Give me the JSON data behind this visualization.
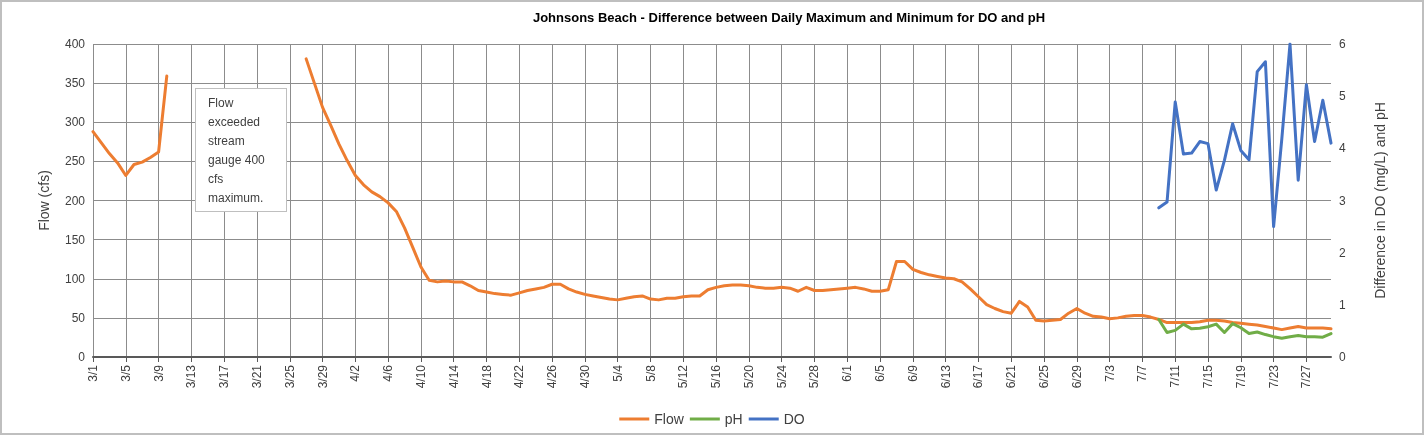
{
  "chart_data": {
    "type": "line",
    "title": "Johnsons Beach - Difference between Daily Maximum and Minimum for DO and pH",
    "ylabel": "Flow (cfs)",
    "y2label": "Difference in DO (mg/L) and pH",
    "annotations": [
      "Flow exceeded stream gauge 400 cfs maximum."
    ],
    "categories": [
      "3/1",
      null,
      null,
      null,
      "3/5",
      null,
      null,
      null,
      "3/9",
      null,
      null,
      null,
      "3/13",
      null,
      null,
      null,
      "3/17",
      null,
      null,
      null,
      "3/21",
      null,
      null,
      null,
      "3/25",
      null,
      null,
      null,
      "3/29",
      null,
      null,
      null,
      "4/2",
      null,
      null,
      null,
      "4/6",
      null,
      null,
      null,
      "4/10",
      null,
      null,
      null,
      "4/14",
      null,
      null,
      null,
      "4/18",
      null,
      null,
      null,
      "4/22",
      null,
      null,
      null,
      "4/26",
      null,
      null,
      null,
      "4/30",
      null,
      null,
      null,
      "5/4",
      null,
      null,
      null,
      "5/8",
      null,
      null,
      null,
      "5/12",
      null,
      null,
      null,
      "5/16",
      null,
      null,
      null,
      "5/20",
      null,
      null,
      null,
      "5/24",
      null,
      null,
      null,
      "5/28",
      null,
      null,
      null,
      "6/1",
      null,
      null,
      null,
      "6/5",
      null,
      null,
      null,
      "6/9",
      null,
      null,
      null,
      "6/13",
      null,
      null,
      null,
      "6/17",
      null,
      null,
      null,
      "6/21",
      null,
      null,
      null,
      "6/25",
      null,
      null,
      null,
      "6/29",
      null,
      null,
      null,
      "7/3",
      null,
      null,
      null,
      "7/7",
      null,
      null,
      null,
      "7/11",
      null,
      null,
      null,
      "7/15",
      null,
      null,
      null,
      "7/19",
      null,
      null,
      null,
      "7/23",
      null,
      null,
      null,
      "7/27",
      null,
      null,
      null
    ],
    "series": [
      {
        "name": "Flow",
        "color": "#ed7d31",
        "values": [
          288,
          274,
          260,
          248,
          232,
          246,
          249,
          255,
          262,
          359,
          null,
          null,
          null,
          null,
          null,
          null,
          null,
          null,
          null,
          null,
          null,
          null,
          null,
          null,
          null,
          null,
          381,
          350,
          319,
          296,
          272,
          251,
          232,
          220,
          211,
          205,
          197,
          186,
          165,
          140,
          115,
          98,
          96,
          97,
          96,
          96,
          91,
          85,
          83,
          81,
          80,
          79,
          82,
          85,
          87,
          89,
          93,
          93,
          87,
          83,
          80,
          78,
          76,
          74,
          73,
          75,
          77,
          78,
          74,
          73,
          75,
          75,
          77,
          78,
          78,
          86,
          89,
          91,
          92,
          92,
          91,
          89,
          88,
          88,
          89,
          88,
          84,
          89,
          85,
          85,
          86,
          87,
          88,
          89,
          87,
          84,
          84,
          86,
          122,
          122,
          112,
          108,
          105,
          103,
          101,
          100,
          96,
          87,
          77,
          67,
          62,
          58,
          56,
          71,
          64,
          47,
          46,
          47,
          48,
          56,
          62,
          56,
          52,
          51,
          49,
          50,
          52,
          53,
          53,
          51,
          48,
          44,
          44,
          44,
          44,
          45,
          47,
          47,
          46,
          44,
          43,
          42,
          41,
          39,
          37,
          35,
          37,
          39,
          37,
          37,
          37,
          36
        ]
      },
      {
        "name": "pH",
        "color": "#70ad47",
        "axis": "y2",
        "values": [
          null,
          null,
          null,
          null,
          null,
          null,
          null,
          null,
          null,
          null,
          null,
          null,
          null,
          null,
          null,
          null,
          null,
          null,
          null,
          null,
          null,
          null,
          null,
          null,
          null,
          null,
          null,
          null,
          null,
          null,
          null,
          null,
          null,
          null,
          null,
          null,
          null,
          null,
          null,
          null,
          null,
          null,
          null,
          null,
          null,
          null,
          null,
          null,
          null,
          null,
          null,
          null,
          null,
          null,
          null,
          null,
          null,
          null,
          null,
          null,
          null,
          null,
          null,
          null,
          null,
          null,
          null,
          null,
          null,
          null,
          null,
          null,
          null,
          null,
          null,
          null,
          null,
          null,
          null,
          null,
          null,
          null,
          null,
          null,
          null,
          null,
          null,
          null,
          null,
          null,
          null,
          null,
          null,
          null,
          null,
          null,
          null,
          null,
          null,
          null,
          null,
          null,
          null,
          null,
          null,
          null,
          null,
          null,
          null,
          null,
          null,
          null,
          null,
          null,
          null,
          null,
          null,
          null,
          null,
          null,
          null,
          null,
          null,
          null,
          null,
          null,
          null,
          null,
          null,
          null,
          0.72,
          0.47,
          0.51,
          0.63,
          0.54,
          0.55,
          0.58,
          0.63,
          0.47,
          0.64,
          0.56,
          0.45,
          0.48,
          0.43,
          0.39,
          0.36,
          0.39,
          0.41,
          0.39,
          0.39,
          0.38,
          0.45
        ]
      },
      {
        "name": "DO",
        "color": "#4472c4",
        "axis": "y2",
        "values": [
          null,
          null,
          null,
          null,
          null,
          null,
          null,
          null,
          null,
          null,
          null,
          null,
          null,
          null,
          null,
          null,
          null,
          null,
          null,
          null,
          null,
          null,
          null,
          null,
          null,
          null,
          null,
          null,
          null,
          null,
          null,
          null,
          null,
          null,
          null,
          null,
          null,
          null,
          null,
          null,
          null,
          null,
          null,
          null,
          null,
          null,
          null,
          null,
          null,
          null,
          null,
          null,
          null,
          null,
          null,
          null,
          null,
          null,
          null,
          null,
          null,
          null,
          null,
          null,
          null,
          null,
          null,
          null,
          null,
          null,
          null,
          null,
          null,
          null,
          null,
          null,
          null,
          null,
          null,
          null,
          null,
          null,
          null,
          null,
          null,
          null,
          null,
          null,
          null,
          null,
          null,
          null,
          null,
          null,
          null,
          null,
          null,
          null,
          null,
          null,
          null,
          null,
          null,
          null,
          null,
          null,
          null,
          null,
          null,
          null,
          null,
          null,
          null,
          null,
          null,
          null,
          null,
          null,
          null,
          null,
          null,
          null,
          null,
          null,
          null,
          null,
          null,
          null,
          null,
          null,
          2.86,
          2.97,
          4.89,
          3.89,
          3.91,
          4.13,
          4.09,
          3.2,
          3.77,
          4.47,
          3.96,
          3.78,
          5.47,
          5.66,
          2.5,
          4.18,
          6.0,
          3.39,
          5.22,
          4.13,
          4.92,
          4.1
        ]
      }
    ],
    "ylim": [
      0,
      400
    ],
    "yticks": [
      0,
      50,
      100,
      150,
      200,
      250,
      300,
      350,
      400
    ],
    "y2lim": [
      0,
      6
    ],
    "y2ticks": [
      0,
      1,
      2,
      3,
      4,
      5,
      6
    ],
    "grid": true,
    "legend": "bottom"
  }
}
